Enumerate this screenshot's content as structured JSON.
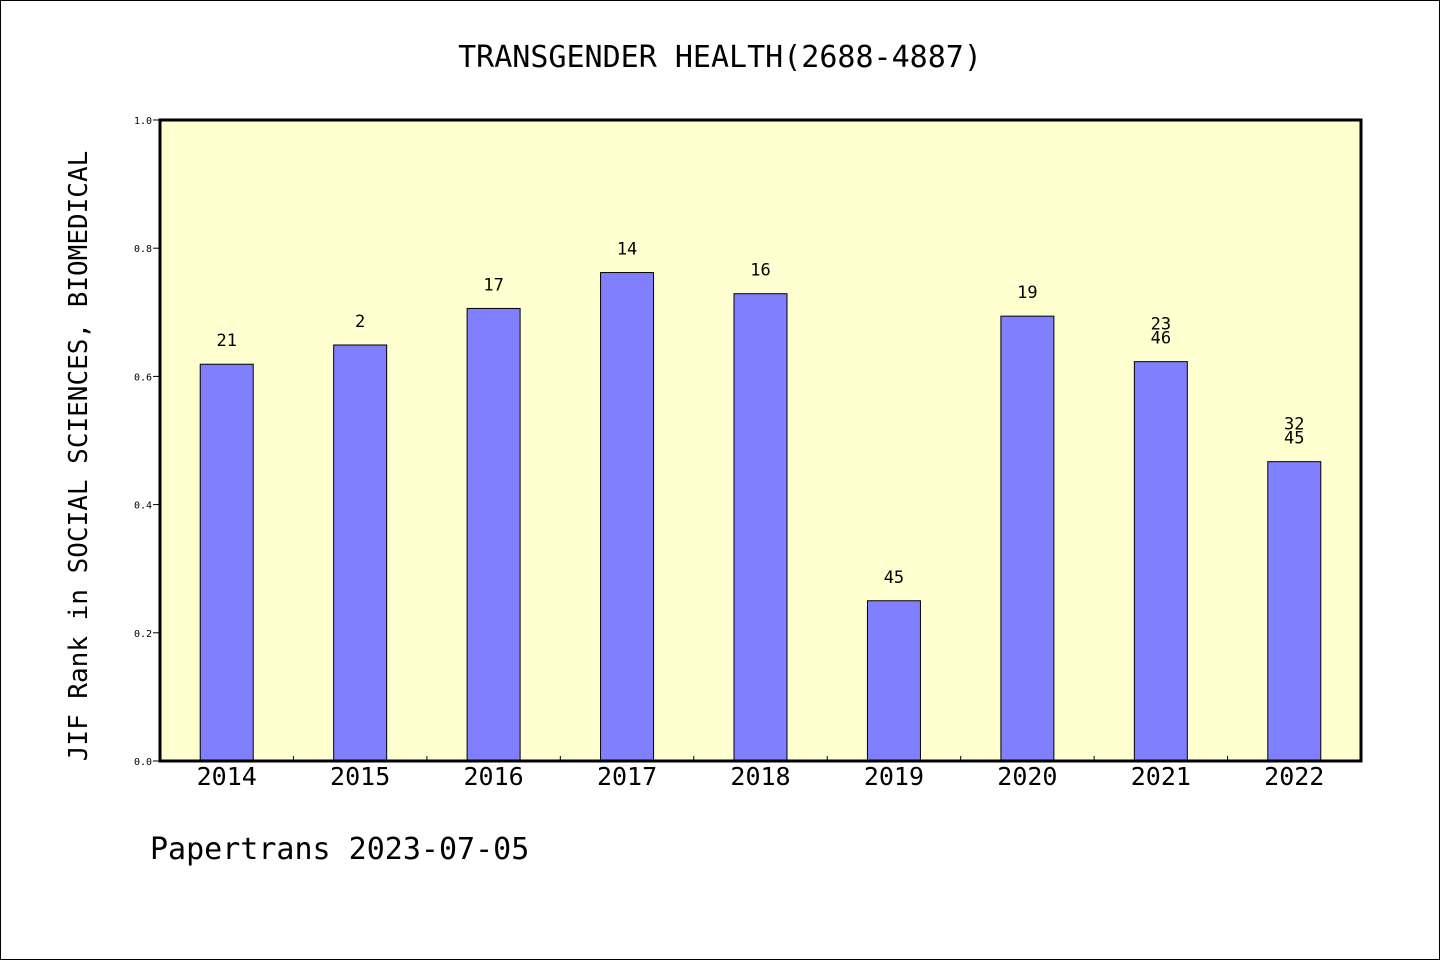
{
  "chart_data": {
    "type": "bar",
    "title": "TRANSGENDER HEALTH(2688-4887)",
    "ylabel": "JIF Rank in SOCIAL SCIENCES, BIOMEDICAL",
    "xlabel": "",
    "ylim": [
      0,
      1
    ],
    "yticks": [
      "0.0",
      "0.2",
      "0.4",
      "0.6",
      "0.8",
      "1.0"
    ],
    "categories": [
      "2014",
      "2015",
      "2016",
      "2017",
      "2018",
      "2019",
      "2020",
      "2021",
      "2022"
    ],
    "values": [
      0.619,
      0.649,
      0.706,
      0.762,
      0.729,
      0.25,
      0.694,
      0.623,
      0.467
    ],
    "labels": [
      [
        "21"
      ],
      [
        "2"
      ],
      [
        "17"
      ],
      [
        "14"
      ],
      [
        "16"
      ],
      [
        "45"
      ],
      [
        "19"
      ],
      [
        "23",
        "46"
      ],
      [
        "32",
        "45"
      ]
    ],
    "plot_background": "#ffffd0",
    "bar_color": "#8080ff",
    "grid": false
  },
  "footer": "Papertrans 2023-07-05"
}
